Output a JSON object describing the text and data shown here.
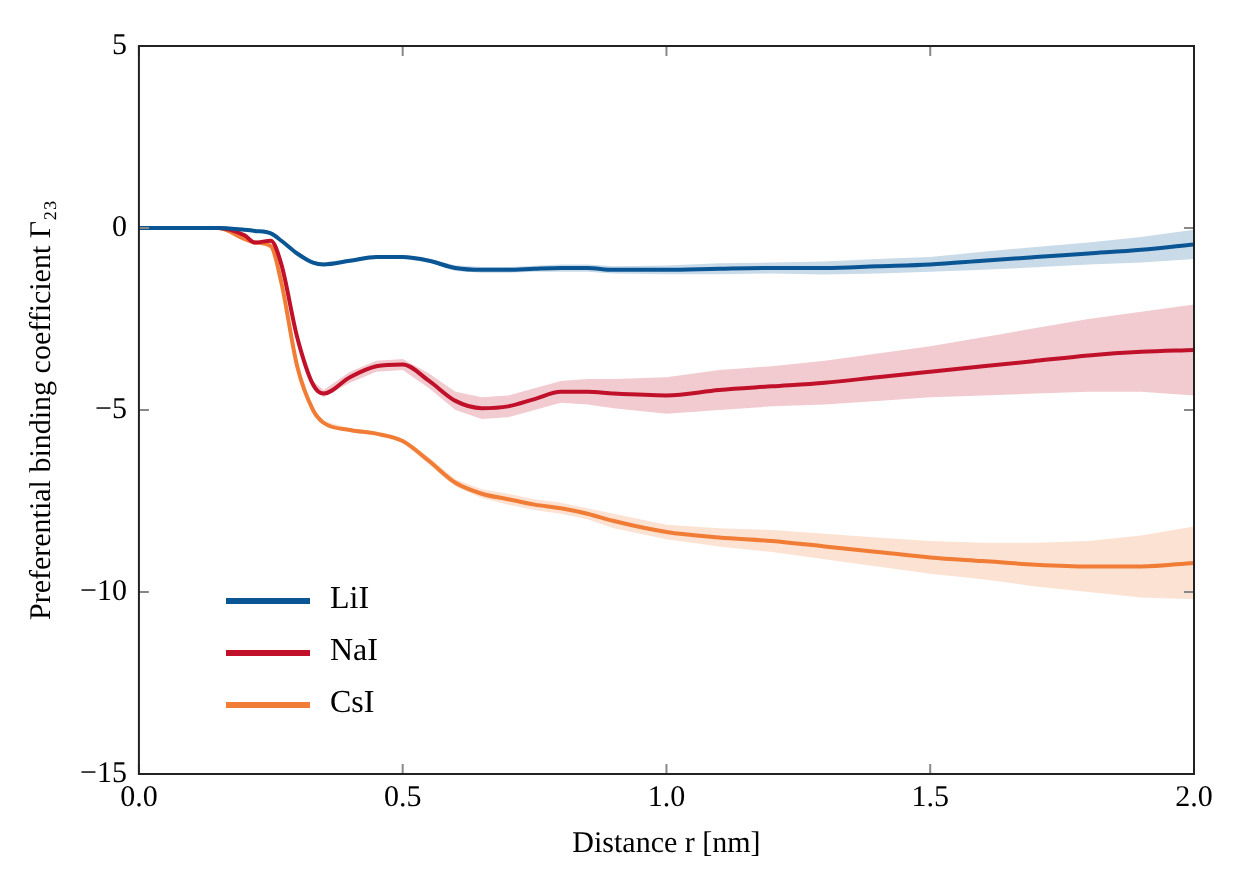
{
  "chart_data": {
    "type": "line",
    "xlabel": "Distance r [nm]",
    "ylabel": "Preferential binding coefficient Γ₂₃",
    "x": [
      0,
      0.1,
      0.15,
      0.2,
      0.22,
      0.25,
      0.27,
      0.3,
      0.33,
      0.35,
      0.4,
      0.45,
      0.5,
      0.55,
      0.6,
      0.65,
      0.7,
      0.75,
      0.8,
      0.85,
      0.9,
      1.0,
      1.1,
      1.2,
      1.3,
      1.4,
      1.5,
      1.6,
      1.7,
      1.8,
      1.9,
      2.0
    ],
    "series": [
      {
        "name": "LiI",
        "color": "#0a5594",
        "values": [
          0,
          0,
          0,
          -0.05,
          -0.08,
          -0.15,
          -0.35,
          -0.7,
          -0.95,
          -1.0,
          -0.9,
          -0.8,
          -0.8,
          -0.9,
          -1.1,
          -1.15,
          -1.15,
          -1.12,
          -1.1,
          -1.1,
          -1.15,
          -1.15,
          -1.12,
          -1.1,
          -1.1,
          -1.05,
          -1.0,
          -0.9,
          -0.8,
          -0.7,
          -0.6,
          -0.45
        ],
        "lower": [
          0,
          0,
          0,
          -0.05,
          -0.08,
          -0.15,
          -0.35,
          -0.75,
          -1.0,
          -1.05,
          -0.95,
          -0.85,
          -0.85,
          -0.95,
          -1.18,
          -1.23,
          -1.23,
          -1.2,
          -1.2,
          -1.2,
          -1.25,
          -1.27,
          -1.27,
          -1.25,
          -1.28,
          -1.25,
          -1.2,
          -1.15,
          -1.08,
          -1.0,
          -0.95,
          -0.85
        ],
        "upper": [
          0,
          0,
          0,
          -0.05,
          -0.08,
          -0.15,
          -0.35,
          -0.65,
          -0.9,
          -0.95,
          -0.85,
          -0.75,
          -0.75,
          -0.85,
          -1.02,
          -1.07,
          -1.07,
          -1.04,
          -1.0,
          -1.0,
          -1.05,
          -1.03,
          -0.97,
          -0.95,
          -0.92,
          -0.85,
          -0.8,
          -0.65,
          -0.52,
          -0.4,
          -0.25,
          -0.05
        ]
      },
      {
        "name": "NaI",
        "color": "#c0102a",
        "values": [
          0,
          0,
          0,
          -0.2,
          -0.4,
          -0.35,
          -1.0,
          -3.0,
          -4.3,
          -4.55,
          -4.1,
          -3.8,
          -3.75,
          -4.2,
          -4.75,
          -4.95,
          -4.9,
          -4.7,
          -4.5,
          -4.5,
          -4.55,
          -4.6,
          -4.45,
          -4.35,
          -4.25,
          -4.1,
          -3.95,
          -3.8,
          -3.65,
          -3.5,
          -3.4,
          -3.35
        ],
        "lower": [
          0,
          0,
          0,
          -0.2,
          -0.4,
          -0.35,
          -1.05,
          -3.1,
          -4.4,
          -4.65,
          -4.25,
          -3.95,
          -3.9,
          -4.4,
          -5.0,
          -5.25,
          -5.2,
          -5.0,
          -4.8,
          -4.85,
          -4.95,
          -5.1,
          -5.0,
          -4.9,
          -4.85,
          -4.75,
          -4.65,
          -4.6,
          -4.55,
          -4.5,
          -4.5,
          -4.6
        ],
        "upper": [
          0,
          0,
          0,
          -0.2,
          -0.4,
          -0.35,
          -0.95,
          -2.9,
          -4.2,
          -4.45,
          -3.95,
          -3.65,
          -3.6,
          -4.0,
          -4.5,
          -4.65,
          -4.6,
          -4.4,
          -4.2,
          -4.15,
          -4.15,
          -4.1,
          -3.9,
          -3.8,
          -3.65,
          -3.45,
          -3.25,
          -3.0,
          -2.75,
          -2.5,
          -2.3,
          -2.1
        ]
      },
      {
        "name": "CsI",
        "color": "#f07c35",
        "values": [
          0,
          0,
          0,
          -0.3,
          -0.4,
          -0.5,
          -1.5,
          -3.8,
          -5.0,
          -5.35,
          -5.55,
          -5.65,
          -5.85,
          -6.4,
          -7.0,
          -7.3,
          -7.45,
          -7.6,
          -7.7,
          -7.85,
          -8.05,
          -8.35,
          -8.5,
          -8.6,
          -8.75,
          -8.9,
          -9.05,
          -9.15,
          -9.25,
          -9.3,
          -9.3,
          -9.2
        ],
        "lower": [
          0,
          0,
          0,
          -0.3,
          -0.4,
          -0.5,
          -1.55,
          -3.85,
          -5.05,
          -5.4,
          -5.6,
          -5.7,
          -5.9,
          -6.5,
          -7.1,
          -7.42,
          -7.6,
          -7.75,
          -7.85,
          -8.0,
          -8.25,
          -8.55,
          -8.75,
          -8.9,
          -9.1,
          -9.3,
          -9.5,
          -9.65,
          -9.85,
          -10.0,
          -10.15,
          -10.2
        ],
        "upper": [
          0,
          0,
          0,
          -0.3,
          -0.4,
          -0.5,
          -1.45,
          -3.75,
          -4.95,
          -5.3,
          -5.5,
          -5.6,
          -5.8,
          -6.3,
          -6.9,
          -7.18,
          -7.3,
          -7.45,
          -7.55,
          -7.7,
          -7.85,
          -8.15,
          -8.25,
          -8.3,
          -8.4,
          -8.5,
          -8.6,
          -8.65,
          -8.65,
          -8.6,
          -8.45,
          -8.2
        ]
      }
    ],
    "xlim": [
      0,
      2
    ],
    "xticks": [
      {
        "value": 0,
        "label": "0.0"
      },
      {
        "value": 0.5,
        "label": "0.5"
      },
      {
        "value": 1,
        "label": "1.0"
      },
      {
        "value": 1.5,
        "label": "1.5"
      },
      {
        "value": 2,
        "label": "2.0"
      }
    ],
    "ylim": [
      -15,
      5
    ],
    "yticks": [
      {
        "value": -15,
        "label": "−15"
      },
      {
        "value": -10,
        "label": "−10"
      },
      {
        "value": -5,
        "label": "−5"
      },
      0,
      5
    ],
    "grid": false,
    "legend": "bottom left",
    "marker": "none",
    "line_style": "solid"
  }
}
